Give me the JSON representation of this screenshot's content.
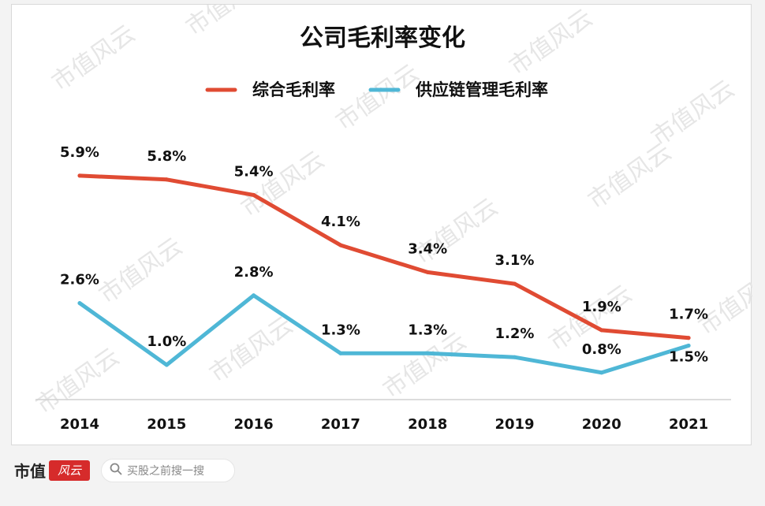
{
  "chart_data": {
    "type": "line",
    "title": "公司毛利率变化",
    "categories": [
      "2014",
      "2015",
      "2016",
      "2017",
      "2018",
      "2019",
      "2020",
      "2021"
    ],
    "series": [
      {
        "name": "综合毛利率",
        "color": "#e04b33",
        "values": [
          5.9,
          5.8,
          5.4,
          4.1,
          3.4,
          3.1,
          1.9,
          1.7
        ],
        "labels": [
          "5.9%",
          "5.8%",
          "5.4%",
          "4.1%",
          "3.4%",
          "3.1%",
          "1.9%",
          "1.7%"
        ]
      },
      {
        "name": "供应链管理毛利率",
        "color": "#4fb7d6",
        "values": [
          2.6,
          1.0,
          2.8,
          1.3,
          1.3,
          1.2,
          0.8,
          1.5
        ],
        "labels": [
          "2.6%",
          "1.0%",
          "2.8%",
          "1.3%",
          "1.3%",
          "1.2%",
          "0.8%",
          "1.5%"
        ]
      }
    ],
    "ylim": [
      0,
      7
    ],
    "legend_position": "top-center",
    "grid": false,
    "xlabel": "",
    "ylabel": ""
  },
  "watermark_text": "市值风云",
  "footer": {
    "brand_name": "市值",
    "brand_seal_text": "风云",
    "search_placeholder": "买股之前搜一搜",
    "search_icon": "search-icon"
  }
}
